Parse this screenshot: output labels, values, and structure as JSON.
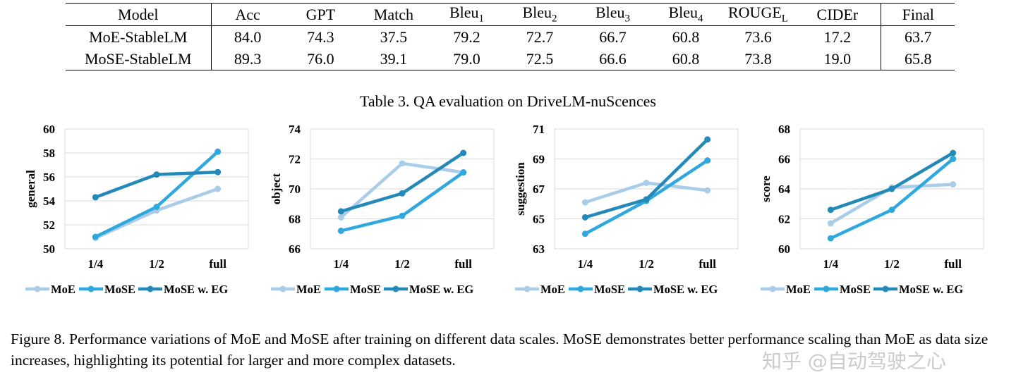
{
  "table": {
    "headers": [
      "Model",
      "Acc",
      "GPT",
      "Match",
      "Bleu",
      "Bleu",
      "Bleu",
      "Bleu",
      "ROUGE",
      "CIDEr",
      "Final"
    ],
    "header_subs": [
      "",
      "",
      "",
      "",
      "1",
      "2",
      "3",
      "4",
      "L",
      "",
      ""
    ],
    "rows": [
      [
        "MoE-StableLM",
        "84.0",
        "74.3",
        "37.5",
        "79.2",
        "72.7",
        "66.7",
        "60.8",
        "73.6",
        "17.2",
        "63.7"
      ],
      [
        "MoSE-StableLM",
        "89.3",
        "76.0",
        "39.1",
        "79.0",
        "72.5",
        "66.6",
        "60.8",
        "73.8",
        "19.0",
        "65.8"
      ]
    ],
    "caption": "Table 3. QA evaluation on DriveLM-nuScences"
  },
  "colors": {
    "MoE": "#a9cde8",
    "MoSE": "#2fa8dd",
    "MoSE w. EG": "#2389b8"
  },
  "chart_data": [
    {
      "type": "line",
      "ylabel": "general",
      "categories": [
        "1/4",
        "1/2",
        "full"
      ],
      "ylim": [
        50,
        60
      ],
      "yticks": [
        "50",
        "52",
        "54",
        "56",
        "58",
        "60"
      ],
      "legend": "bottom",
      "series": [
        {
          "name": "MoE",
          "values": [
            50.9,
            53.2,
            55.0
          ]
        },
        {
          "name": "MoSE",
          "values": [
            51.0,
            53.5,
            58.1
          ]
        },
        {
          "name": "MoSE w. EG",
          "values": [
            54.3,
            56.2,
            56.4
          ]
        }
      ]
    },
    {
      "type": "line",
      "ylabel": "object",
      "categories": [
        "1/4",
        "1/2",
        "full"
      ],
      "ylim": [
        66,
        74
      ],
      "yticks": [
        "66",
        "68",
        "70",
        "72",
        "74"
      ],
      "legend": "bottom",
      "series": [
        {
          "name": "MoE",
          "values": [
            68.1,
            71.7,
            71.1
          ]
        },
        {
          "name": "MoSE",
          "values": [
            67.2,
            68.2,
            71.1
          ]
        },
        {
          "name": "MoSE w. EG",
          "values": [
            68.5,
            69.7,
            72.4
          ]
        }
      ]
    },
    {
      "type": "line",
      "ylabel": "suggestion",
      "categories": [
        "1/4",
        "1/2",
        "full"
      ],
      "ylim": [
        63,
        71
      ],
      "yticks": [
        "63",
        "65",
        "67",
        "69",
        "71"
      ],
      "legend": "bottom",
      "series": [
        {
          "name": "MoE",
          "values": [
            66.1,
            67.4,
            66.9
          ]
        },
        {
          "name": "MoSE",
          "values": [
            64.0,
            66.2,
            68.9
          ]
        },
        {
          "name": "MoSE w. EG",
          "values": [
            65.1,
            66.3,
            70.3
          ]
        }
      ]
    },
    {
      "type": "line",
      "ylabel": "score",
      "categories": [
        "1/4",
        "1/2",
        "full"
      ],
      "ylim": [
        60,
        68
      ],
      "yticks": [
        "60",
        "62",
        "64",
        "66",
        "68"
      ],
      "legend": "bottom",
      "series": [
        {
          "name": "MoE",
          "values": [
            61.7,
            64.1,
            64.3
          ]
        },
        {
          "name": "MoSE",
          "values": [
            60.7,
            62.6,
            66.0
          ]
        },
        {
          "name": "MoSE w. EG",
          "values": [
            62.6,
            64.0,
            66.4
          ]
        }
      ]
    }
  ],
  "figure_caption": "Figure 8. Performance variations of MoE and MoSE after training on different data scales. MoSE demonstrates better performance scaling than MoE as data size increases, highlighting its potential for larger and more complex datasets.",
  "watermark": "知乎 @自动驾驶之心"
}
